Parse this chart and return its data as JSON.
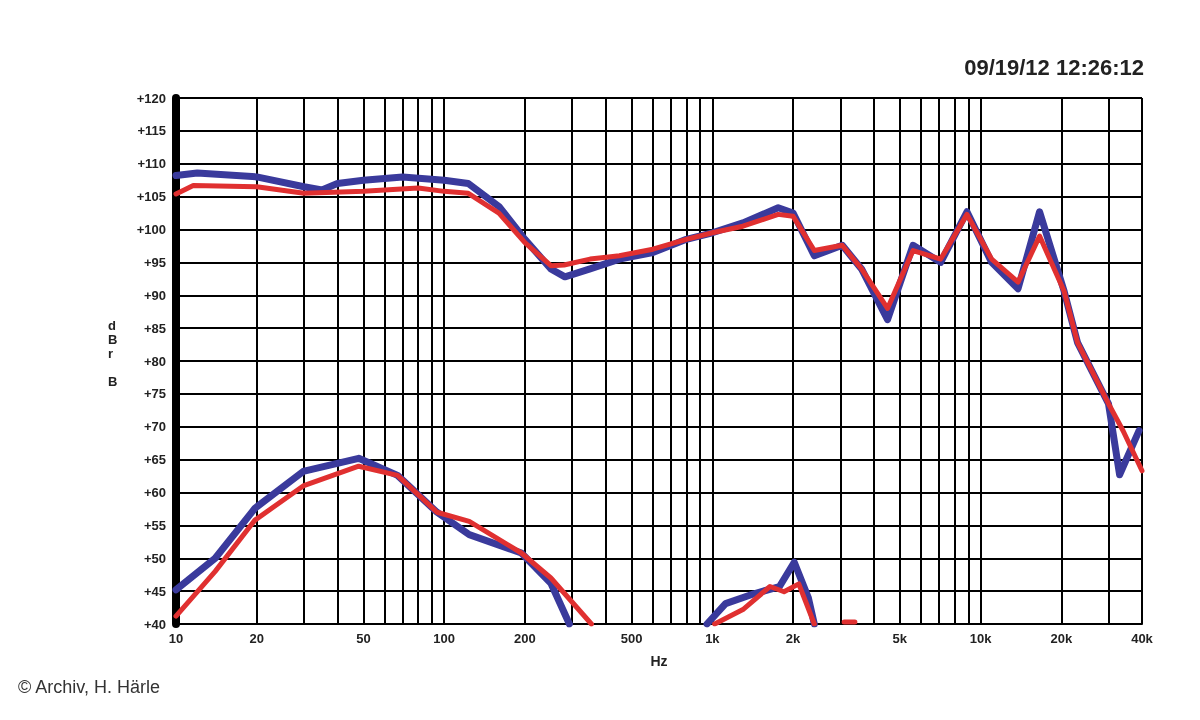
{
  "chart_data": {
    "type": "line",
    "xlabel": "Hz",
    "ylabel": "dBr B",
    "log": "x",
    "grid": true,
    "marker": "none",
    "line_style": "solid",
    "annotations": [
      "09/19/12 12:26:12",
      "© Archiv, H. Härle"
    ],
    "xlim": [
      10,
      40000
    ],
    "ylim": [
      40,
      120
    ],
    "xticks": [
      10,
      20,
      {
        "value": 30,
        "label": null
      },
      {
        "value": 40,
        "label": null
      },
      50,
      {
        "value": 60,
        "label": null
      },
      {
        "value": 70,
        "label": null
      },
      {
        "value": 80,
        "label": null
      },
      {
        "value": 90,
        "label": null
      },
      100,
      200,
      {
        "value": 300,
        "label": null
      },
      {
        "value": 400,
        "label": null
      },
      500,
      {
        "value": 600,
        "label": null
      },
      {
        "value": 700,
        "label": null
      },
      {
        "value": 800,
        "label": null
      },
      {
        "value": 900,
        "label": null
      },
      {
        "value": 1000,
        "label": "1k"
      },
      {
        "value": 2000,
        "label": "2k"
      },
      {
        "value": 3000,
        "label": null
      },
      {
        "value": 4000,
        "label": null
      },
      {
        "value": 5000,
        "label": "5k"
      },
      {
        "value": 6000,
        "label": null
      },
      {
        "value": 7000,
        "label": null
      },
      {
        "value": 8000,
        "label": null
      },
      {
        "value": 9000,
        "label": null
      },
      {
        "value": 10000,
        "label": "10k"
      },
      {
        "value": 20000,
        "label": "20k"
      },
      {
        "value": 30000,
        "label": null
      },
      {
        "value": 40000,
        "label": "40k"
      }
    ],
    "yticks": [
      {
        "value": 40,
        "label": "+40"
      },
      {
        "value": 45,
        "label": "+45"
      },
      {
        "value": 50,
        "label": "+50"
      },
      {
        "value": 55,
        "label": "+55"
      },
      {
        "value": 60,
        "label": "+60"
      },
      {
        "value": 65,
        "label": "+65"
      },
      {
        "value": 70,
        "label": "+70"
      },
      {
        "value": 75,
        "label": "+75"
      },
      {
        "value": 80,
        "label": "+80"
      },
      {
        "value": 85,
        "label": "+85"
      },
      {
        "value": 90,
        "label": "+90"
      },
      {
        "value": 95,
        "label": "+95"
      },
      {
        "value": 100,
        "label": "+100"
      },
      {
        "value": 105,
        "label": "+105"
      },
      {
        "value": 110,
        "label": "+110"
      },
      {
        "value": 115,
        "label": "+115"
      },
      {
        "value": 120,
        "label": "+120"
      }
    ],
    "series": [
      {
        "color": "#3a3a9c",
        "x": [
          10,
          12,
          20,
          30,
          35,
          40,
          50,
          70,
          100,
          123,
          160,
          200,
          250,
          282,
          350,
          450,
          600,
          800,
          1000,
          1300,
          1760,
          2000,
          2400,
          3050,
          3600,
          4500,
          5600,
          7100,
          8900,
          11000,
          13800,
          16600,
          20500,
          23000,
          30000,
          33000,
          39000
        ],
        "values": [
          108.2,
          108.6,
          108,
          106.5,
          106,
          107,
          107.5,
          108,
          107.5,
          107,
          103.5,
          98.5,
          94,
          92.8,
          94,
          95.5,
          96.5,
          98.5,
          99.5,
          101,
          103.3,
          102.5,
          96,
          97.6,
          94,
          86.3,
          97.6,
          95,
          102.7,
          95,
          91,
          102.7,
          90.6,
          82.8,
          73.5,
          62.7,
          69.4
        ]
      },
      {
        "color": "#3a3a9c",
        "x": [
          10,
          14,
          19.7,
          29.8,
          48,
          67,
          94,
          124,
          194,
          250,
          293,
          null,
          955,
          1120,
          1430,
          1780,
          2020,
          2280,
          2400
        ],
        "values": [
          45.2,
          50,
          57.6,
          63.2,
          65.2,
          62.6,
          57,
          53.6,
          50.8,
          46.2,
          40,
          null,
          40,
          43.1,
          44.6,
          45.7,
          49.4,
          44,
          40
        ]
      },
      {
        "color": "#e03030",
        "x": [
          10,
          11.6,
          20,
          30,
          50,
          80,
          100,
          123,
          160,
          200,
          250,
          280,
          350,
          450,
          600,
          800,
          1000,
          1300,
          1760,
          2000,
          2400,
          3050,
          3600,
          4500,
          5600,
          7100,
          8900,
          11000,
          13800,
          16600,
          20500,
          23000,
          30000,
          34000,
          40000
        ],
        "values": [
          105.4,
          106.7,
          106.5,
          105.5,
          105.8,
          106.3,
          105.8,
          105.5,
          102.5,
          98,
          94.5,
          94.6,
          95.5,
          96,
          97,
          98.5,
          99.5,
          100.5,
          102.3,
          102,
          96.8,
          97.6,
          94,
          88,
          96.8,
          95.5,
          102.3,
          95.5,
          92,
          99,
          90.6,
          82.8,
          73.5,
          69.4,
          63.3
        ]
      },
      {
        "color": "#e03030",
        "x": [
          10,
          14,
          19.7,
          29.8,
          48,
          67,
          94,
          124,
          194,
          250,
          354,
          null,
          1020,
          1300,
          1640,
          1850,
          2100,
          2400,
          null,
          3100,
          3400
        ],
        "values": [
          41.2,
          48,
          55.8,
          61,
          64,
          62.6,
          57,
          55.6,
          50.8,
          47,
          40,
          null,
          40,
          42.2,
          45.7,
          44.9,
          46.1,
          40,
          null,
          40.3,
          40.3
        ]
      }
    ]
  }
}
